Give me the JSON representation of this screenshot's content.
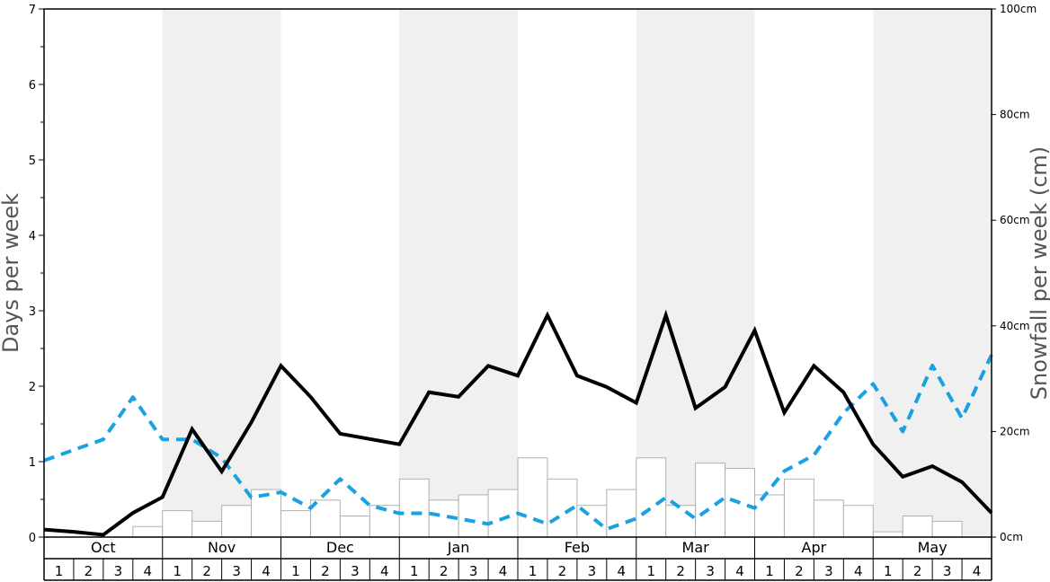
{
  "chart_data": {
    "type": "bar+line",
    "title": "",
    "months": [
      "Oct",
      "Nov",
      "Dec",
      "Jan",
      "Feb",
      "Mar",
      "Apr",
      "May"
    ],
    "week_labels": [
      "1",
      "2",
      "3",
      "4"
    ],
    "ylabel_left": "Days per week",
    "ylabel_right": "Snowfall per week (cm)",
    "ylim_left": [
      0,
      7
    ],
    "ylim_right": [
      0,
      100
    ],
    "yticks_left": [
      "0",
      "1",
      "2",
      "3",
      "4",
      "5",
      "6",
      "7"
    ],
    "yticks_right": [
      "0cm",
      "20cm",
      "40cm",
      "60cm",
      "80cm",
      "100cm"
    ],
    "shaded_months": [
      "Nov",
      "Jan",
      "Mar",
      "May"
    ],
    "colors": {
      "shade": "#f0f0f0",
      "bar_fill": "#ffffff",
      "bar_stroke": "#b0b0b0",
      "days_line": "#000000",
      "snowfall_line": "#1aa1e1",
      "title_text": "#555555"
    },
    "series": [
      {
        "kind": "bar",
        "axis": "right",
        "unit": "cm",
        "values": [
          0,
          0,
          0,
          2,
          5,
          3,
          6,
          9,
          5,
          7,
          4,
          6,
          11,
          7,
          8,
          9,
          15,
          11,
          6,
          9,
          15,
          6,
          14,
          13,
          8,
          11,
          7,
          6,
          1,
          4,
          3,
          0
        ]
      },
      {
        "kind": "line",
        "axis": "left",
        "style": "solid",
        "values": [
          0.1,
          0.07,
          0.03,
          0.32,
          0.53,
          1.43,
          0.87,
          1.52,
          2.27,
          1.86,
          1.37,
          1.3,
          1.23,
          1.92,
          1.86,
          2.27,
          2.14,
          2.94,
          2.14,
          1.99,
          1.78,
          2.94,
          1.71,
          1.99,
          2.74,
          1.65,
          2.27,
          1.92,
          1.23,
          0.8,
          0.94,
          0.73,
          0.32
        ]
      },
      {
        "kind": "line",
        "axis": "right",
        "style": "dashed",
        "values": [
          14.5,
          16.5,
          18.5,
          26.5,
          18.5,
          18.5,
          15,
          7.5,
          8.5,
          5.5,
          11,
          6,
          4.5,
          4.5,
          3.5,
          2.5,
          4.5,
          2.5,
          6,
          1.5,
          3.5,
          7.5,
          3.5,
          7.5,
          5.5,
          12.5,
          15.5,
          23.5,
          29,
          20,
          32.5,
          22.5,
          34.5
        ]
      }
    ],
    "grid": false,
    "legend": "none"
  }
}
